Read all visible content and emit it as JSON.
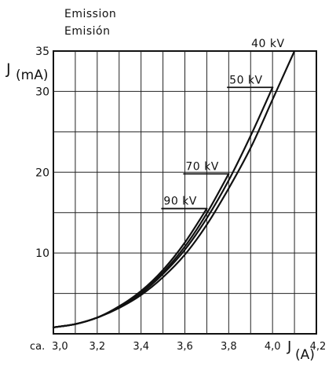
{
  "chart_data": {
    "type": "line",
    "title": "Emission",
    "subtitle": "Emisión",
    "ylabel": {
      "main": "J",
      "sub": "(mA)"
    },
    "xlabel": {
      "main": "J",
      "sub": "(A)"
    },
    "x_prefix": "ca.",
    "xlim": [
      3.0,
      4.2
    ],
    "ylim": [
      0,
      35
    ],
    "x_ticks": [
      3.0,
      3.2,
      3.4,
      3.6,
      3.8,
      4.0,
      4.2
    ],
    "x_tick_labels": [
      "3,0",
      "3,2",
      "3,4",
      "3,6",
      "3,8",
      "4,0",
      "4,2"
    ],
    "y_ticks": [
      10,
      20,
      30,
      35
    ],
    "y_tick_labels": [
      "10",
      "20",
      "30",
      "35"
    ],
    "grid": true,
    "series": [
      {
        "name": "40 kV",
        "x": [
          3.0,
          3.1,
          3.2,
          3.3,
          3.4,
          3.5,
          3.6,
          3.7,
          3.8,
          3.9,
          4.0,
          4.1
        ],
        "y": [
          0.8,
          1.2,
          2.0,
          3.2,
          4.8,
          7.0,
          9.8,
          13.5,
          18.0,
          23.0,
          29.0,
          35.0
        ]
      },
      {
        "name": "50 kV",
        "x": [
          3.0,
          3.1,
          3.2,
          3.3,
          3.4,
          3.5,
          3.6,
          3.7,
          3.8,
          3.9,
          4.0
        ],
        "y": [
          0.8,
          1.2,
          2.0,
          3.3,
          5.0,
          7.4,
          10.4,
          14.3,
          19.0,
          24.5,
          30.5
        ]
      },
      {
        "name": "70 kV",
        "x": [
          3.0,
          3.1,
          3.2,
          3.3,
          3.4,
          3.5,
          3.6,
          3.7,
          3.8
        ],
        "y": [
          0.8,
          1.2,
          2.0,
          3.3,
          5.1,
          7.6,
          10.8,
          14.9,
          19.8
        ]
      },
      {
        "name": "90 kV",
        "x": [
          3.0,
          3.1,
          3.2,
          3.3,
          3.4,
          3.5,
          3.6,
          3.7
        ],
        "y": [
          0.8,
          1.2,
          2.0,
          3.4,
          5.3,
          7.9,
          11.3,
          15.5
        ]
      }
    ]
  }
}
